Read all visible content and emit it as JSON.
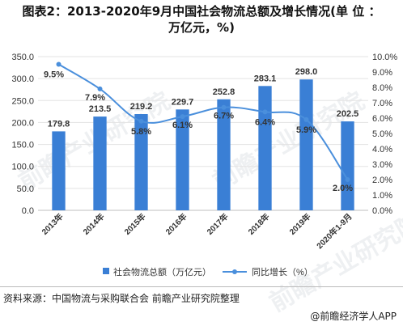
{
  "header": {
    "title_line1": "图表2：2013-2020年9月中国社会物流总额及增长情况(单 位 ：",
    "title_line2": "万亿元，%)"
  },
  "chart_data": {
    "type": "bar",
    "categories": [
      "2013年",
      "2014年",
      "2015年",
      "2016年",
      "2017年",
      "2018年",
      "2019年",
      "2020年1-9月"
    ],
    "series": [
      {
        "name": "社会物流总额（万亿元）",
        "type": "bar",
        "axis": "left",
        "values": [
          179.8,
          213.5,
          219.2,
          229.7,
          252.8,
          283.1,
          298.0,
          202.5
        ],
        "labels": [
          "179.8",
          "213.5",
          "219.2",
          "229.7",
          "252.8",
          "283.1",
          "298.0",
          "202.5"
        ],
        "color": "#3a7fd5"
      },
      {
        "name": "同比增长（%）",
        "type": "line",
        "axis": "right",
        "values": [
          9.5,
          7.9,
          5.8,
          6.1,
          6.7,
          6.4,
          5.9,
          2.0
        ],
        "labels": [
          "9.5%",
          "7.9%",
          "5.8%",
          "6.1%",
          "6.7%",
          "6.4%",
          "5.9%",
          "2.0%"
        ],
        "color": "#4a8fdc"
      }
    ],
    "y_left": {
      "min": 0,
      "max": 350,
      "step": 50,
      "ticks": [
        "0.0",
        "50.0",
        "100.0",
        "150.0",
        "200.0",
        "250.0",
        "300.0",
        "350.0"
      ]
    },
    "y_right": {
      "min": 0,
      "max": 10,
      "step": 1,
      "ticks": [
        "0.0%",
        "1.0%",
        "2.0%",
        "3.0%",
        "4.0%",
        "5.0%",
        "6.0%",
        "7.0%",
        "8.0%",
        "9.0%",
        "10.0%"
      ]
    },
    "grid": true,
    "legend_position": "bottom"
  },
  "footer": {
    "source": "资料来源：中国物流与采购联合会 前瞻产业研究院整理",
    "brand": "@前瞻经济学人APP"
  }
}
